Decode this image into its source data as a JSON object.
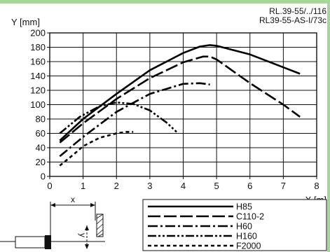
{
  "chart_data": {
    "type": "line",
    "model_labels": [
      "RL.39-55/../116",
      "RL39-55-AS-I/73c"
    ],
    "ylabel": "Y [mm]",
    "xlabel": "X [m]",
    "xlim": [
      0,
      8
    ],
    "ylim": [
      0,
      200
    ],
    "xticks": [
      0,
      1,
      2,
      3,
      4,
      5,
      6,
      7,
      8
    ],
    "yticks": [
      0,
      20,
      40,
      60,
      80,
      100,
      120,
      140,
      160,
      180,
      200
    ],
    "grid": true,
    "legend_position": "bottom-right",
    "series": [
      {
        "name": "H85",
        "dash": "solid",
        "x": [
          0.3,
          1.0,
          2.0,
          3.0,
          4.0,
          4.5,
          4.8,
          5.0,
          6.0,
          7.0,
          7.5
        ],
        "y": [
          50,
          80,
          115,
          148,
          172,
          181,
          183,
          182,
          170,
          152,
          143
        ]
      },
      {
        "name": "C110-2",
        "dash": "long-dash",
        "x": [
          0.3,
          1.0,
          2.0,
          3.0,
          4.0,
          4.6,
          4.8,
          5.0,
          6.0,
          7.0,
          7.5
        ],
        "y": [
          47,
          74,
          108,
          137,
          159,
          167,
          167,
          163,
          130,
          100,
          83
        ]
      },
      {
        "name": "H60",
        "dash": "dash-dot",
        "x": [
          0.3,
          1.0,
          2.0,
          3.0,
          4.0,
          4.5,
          4.8
        ],
        "y": [
          28,
          55,
          90,
          115,
          129,
          130,
          128
        ]
      },
      {
        "name": "H160",
        "dash": "dash-dot-dot",
        "x": [
          0.3,
          0.9,
          1.5,
          2.0,
          2.5,
          3.0,
          3.5,
          3.8
        ],
        "y": [
          60,
          83,
          98,
          103,
          101,
          92,
          75,
          62
        ]
      },
      {
        "name": "F2000",
        "dash": "short-dash",
        "x": [
          0.3,
          0.7,
          1.0,
          1.5,
          2.0,
          2.3,
          2.5
        ],
        "y": [
          15,
          30,
          42,
          54,
          60,
          62,
          62
        ]
      }
    ],
    "diagram": {
      "x_label": "x",
      "y_label": "y"
    }
  }
}
